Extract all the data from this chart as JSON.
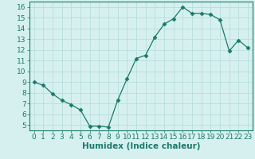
{
  "x": [
    0,
    1,
    2,
    3,
    4,
    5,
    6,
    7,
    8,
    9,
    10,
    11,
    12,
    13,
    14,
    15,
    16,
    17,
    18,
    19,
    20,
    21,
    22,
    23
  ],
  "y": [
    9,
    8.7,
    7.9,
    7.3,
    6.9,
    6.4,
    4.9,
    4.9,
    4.8,
    7.3,
    9.3,
    11.2,
    11.5,
    13.2,
    14.4,
    14.9,
    16.0,
    15.4,
    15.4,
    15.3,
    14.8,
    11.9,
    12.9,
    12.2
  ],
  "line_color": "#1a7a6a",
  "marker": "D",
  "marker_size": 2.5,
  "bg_color": "#d6f0f0",
  "grid_color": "#b8dede",
  "xlabel": "Humidex (Indice chaleur)",
  "xlim": [
    -0.5,
    23.5
  ],
  "ylim": [
    4.5,
    16.5
  ],
  "yticks": [
    5,
    6,
    7,
    8,
    9,
    10,
    11,
    12,
    13,
    14,
    15,
    16
  ],
  "xticks": [
    0,
    1,
    2,
    3,
    4,
    5,
    6,
    7,
    8,
    9,
    10,
    11,
    12,
    13,
    14,
    15,
    16,
    17,
    18,
    19,
    20,
    21,
    22,
    23
  ],
  "xlabel_fontsize": 7.5,
  "tick_fontsize": 6.5
}
